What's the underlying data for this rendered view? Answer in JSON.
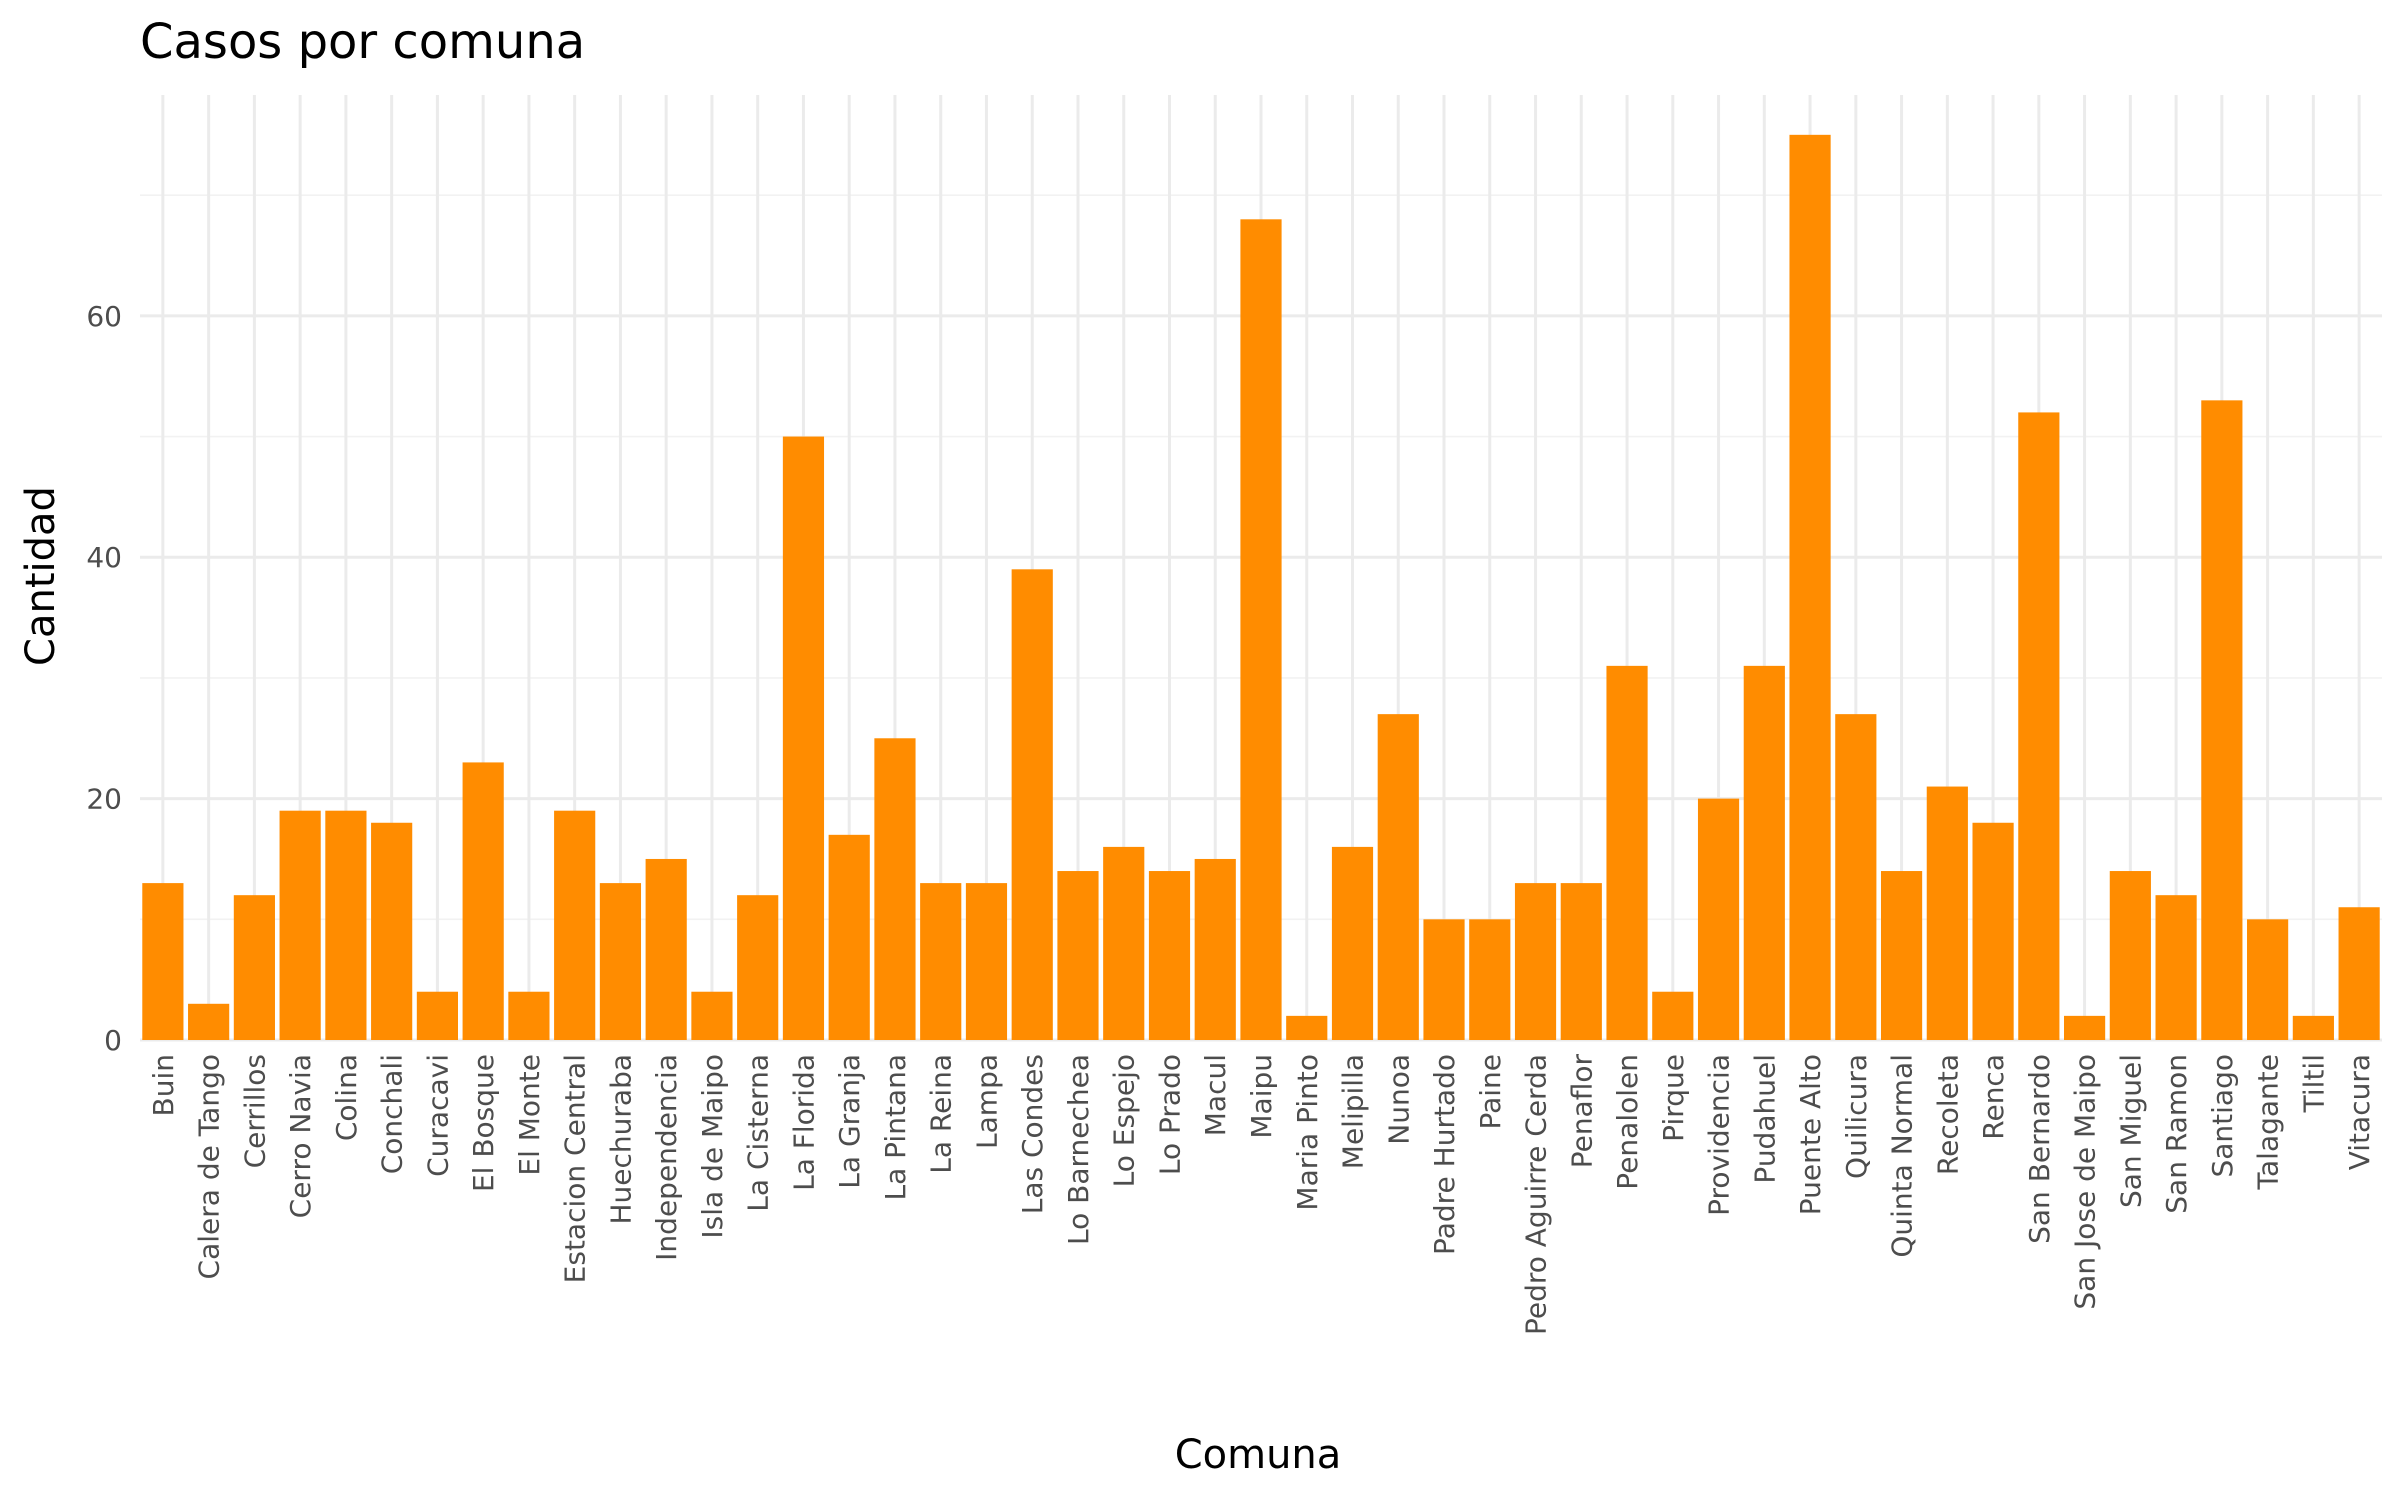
{
  "chart_data": {
    "type": "bar",
    "title": "Casos por comuna",
    "xlabel": "Comuna",
    "ylabel": "Cantidad",
    "categories": [
      "Buin",
      "Calera de Tango",
      "Cerrillos",
      "Cerro Navia",
      "Colina",
      "Conchali",
      "Curacavi",
      "El Bosque",
      "El Monte",
      "Estacion Central",
      "Huechuraba",
      "Independencia",
      "Isla de Maipo",
      "La Cisterna",
      "La Florida",
      "La Granja",
      "La Pintana",
      "La Reina",
      "Lampa",
      "Las Condes",
      "Lo Barnechea",
      "Lo Espejo",
      "Lo Prado",
      "Macul",
      "Maipu",
      "Maria Pinto",
      "Melipilla",
      "Nunoa",
      "Padre Hurtado",
      "Paine",
      "Pedro Aguirre Cerda",
      "Penaflor",
      "Penalolen",
      "Pirque",
      "Providencia",
      "Pudahuel",
      "Puente Alto",
      "Quilicura",
      "Quinta Normal",
      "Recoleta",
      "Renca",
      "San Bernardo",
      "San Jose de Maipo",
      "San Miguel",
      "San Ramon",
      "Santiago",
      "Talagante",
      "Tiltil",
      "Vitacura"
    ],
    "values": [
      13,
      3,
      12,
      19,
      19,
      18,
      4,
      23,
      4,
      19,
      13,
      15,
      4,
      12,
      50,
      17,
      25,
      13,
      13,
      39,
      14,
      16,
      14,
      15,
      68,
      2,
      16,
      27,
      10,
      10,
      13,
      13,
      31,
      4,
      20,
      31,
      75,
      27,
      14,
      21,
      18,
      52,
      2,
      14,
      12,
      53,
      10,
      2,
      11
    ],
    "ylim": [
      0,
      78.3
    ],
    "y_ticks": [
      0,
      20,
      40,
      60
    ],
    "bar_color": "#ff8c00",
    "grid": true,
    "legend": "none"
  }
}
